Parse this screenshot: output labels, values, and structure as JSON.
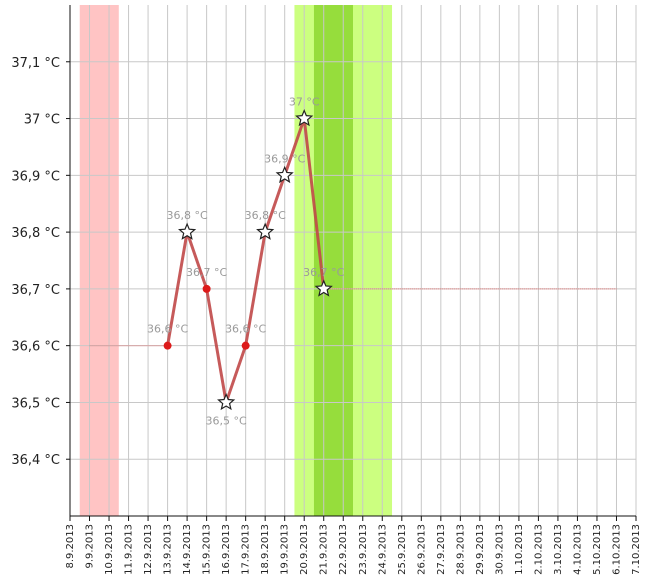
{
  "chart_data": {
    "type": "line",
    "title": "",
    "xlabel": "",
    "ylabel": "",
    "unit": "°C",
    "grid": true,
    "ylim": [
      36.3,
      37.2
    ],
    "yticks": [
      36.4,
      36.5,
      36.6,
      36.7,
      36.8,
      36.9,
      37.0,
      37.1
    ],
    "ytick_labels": [
      "36,4 °C",
      "36,5 °C",
      "36,6 °C",
      "36,7 °C",
      "36,8 °C",
      "36,9 °C",
      "37 °C",
      "37,1 °C"
    ],
    "x_labels": [
      "8.9.2013",
      "9.9.2013",
      "10.9.2013",
      "11.9.2013",
      "12.9.2013",
      "13.9.2013",
      "14.9.2013",
      "15.9.2013",
      "16.9.2013",
      "17.9.2013",
      "18.9.2013",
      "19.9.2013",
      "20.9.2013",
      "21.9.2013",
      "22.9.2013",
      "23.9.2013",
      "24.9.2013",
      "25.9.2013",
      "26.9.2013",
      "27.9.2013",
      "28.9.2013",
      "29.9.2013",
      "30.9.2013",
      "1.10.2013",
      "2.10.2013",
      "3.10.2013",
      "4.10.2013",
      "5.10.2013",
      "6.10.2013",
      "7.10.2013"
    ],
    "bands": [
      {
        "from": "9.9.2013",
        "to": "10.9.2013",
        "color": "#ffc4c4"
      },
      {
        "from": "20.9.2013",
        "to": "24.9.2013",
        "color": "#ccff80"
      },
      {
        "from": "21.9.2013",
        "to": "22.9.2013",
        "color": "#b2ee5a"
      },
      {
        "from": "21.9.2013",
        "to": "22.9.2013",
        "color": "#96dd3c"
      }
    ],
    "reference_lines": [
      {
        "from": "9.9.2013",
        "to": "13.9.2013",
        "y": 36.6,
        "color": "#e08080"
      },
      {
        "from": "21.9.2013",
        "to": "6.10.2013",
        "y": 36.7,
        "color": "#e08080"
      }
    ],
    "series": [
      {
        "color": "#c04848",
        "points": [
          {
            "x": "13.9.2013",
            "y": 36.6,
            "marker": "dot",
            "label": "36,6 °C"
          },
          {
            "x": "14.9.2013",
            "y": 36.8,
            "marker": "star",
            "label": "36,8 °C"
          },
          {
            "x": "15.9.2013",
            "y": 36.7,
            "marker": "dot",
            "label": "36,7 °C"
          },
          {
            "x": "16.9.2013",
            "y": 36.5,
            "marker": "star",
            "label": "36,5 °C"
          },
          {
            "x": "17.9.2013",
            "y": 36.6,
            "marker": "dot",
            "label": "36,6 °C"
          },
          {
            "x": "18.9.2013",
            "y": 36.8,
            "marker": "star",
            "label": "36,8 °C"
          },
          {
            "x": "19.9.2013",
            "y": 36.9,
            "marker": "star",
            "label": "36,9 °C"
          },
          {
            "x": "20.9.2013",
            "y": 37.0,
            "marker": "star",
            "label": "37 °C"
          },
          {
            "x": "21.9.2013",
            "y": 36.7,
            "marker": "star",
            "label": "36,7 °C"
          }
        ]
      }
    ]
  }
}
